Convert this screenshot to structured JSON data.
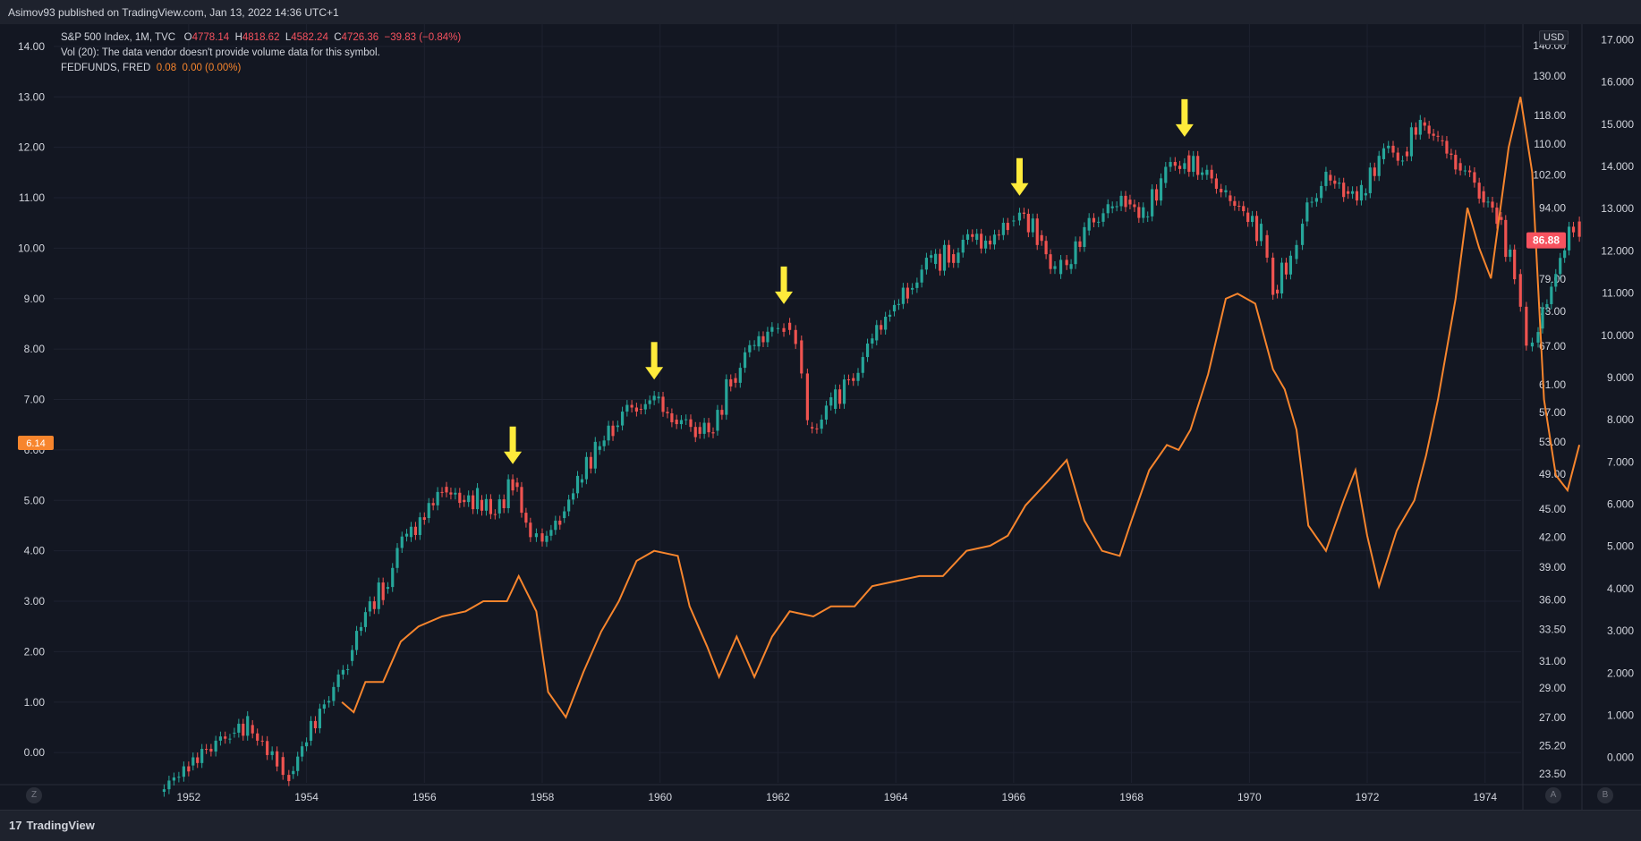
{
  "header": {
    "published": "Asimov93 published on TradingView.com, Jan 13, 2022 14:36 UTC+1"
  },
  "legend": {
    "spx_label": "S&P 500 Index, 1M, TVC",
    "spx_o_key": "O",
    "spx_o": "4778.14",
    "spx_h_key": "H",
    "spx_h": "4818.62",
    "spx_l_key": "L",
    "spx_l": "4582.24",
    "spx_c_key": "C",
    "spx_c": "4726.36",
    "spx_change": "−39.83 (−0.84%)",
    "vol_text": "Vol (20): The data vendor doesn't provide volume data for this symbol.",
    "fed_label": "FEDFUNDS, FRED",
    "fed_value": "0.08",
    "fed_change": "0.00 (0.00%)"
  },
  "footer": {
    "brand": "TradingView",
    "logo": "17",
    "btn_z": "Z",
    "btn_a": "A",
    "btn_b": "B"
  },
  "currency": "USD",
  "chart_data": {
    "type": "candlestick+line",
    "x_ticks": [
      "1952",
      "1954",
      "1956",
      "1958",
      "1960",
      "1962",
      "1964",
      "1966",
      "1968",
      "1970",
      "1972",
      "1974"
    ],
    "left_axis_ticks": [
      "14.00",
      "13.00",
      "12.00",
      "11.00",
      "10.00",
      "9.00",
      "8.00",
      "7.00",
      "6.00",
      "5.00",
      "4.00",
      "3.00",
      "2.00",
      "1.00",
      "0.00"
    ],
    "right_axis_ticks": [
      "140.00",
      "130.00",
      "118.00",
      "110.00",
      "102.00",
      "94.00",
      "86.00",
      "79.00",
      "73.00",
      "67.00",
      "61.00",
      "57.00",
      "53.00",
      "49.00",
      "45.00",
      "42.00",
      "39.00",
      "36.00",
      "33.50",
      "31.00",
      "29.00",
      "27.00",
      "25.20",
      "23.50"
    ],
    "far_right_axis_ticks": [
      "17.000",
      "16.000",
      "15.000",
      "14.000",
      "13.000",
      "12.000",
      "11.000",
      "10.000",
      "9.000",
      "8.000",
      "7.000",
      "6.000",
      "5.000",
      "4.000",
      "3.000",
      "2.000",
      "1.000",
      "0.000"
    ],
    "spx_last_label": "86.88",
    "fed_last_label": "6.14",
    "series": [
      {
        "name": "S&P 500 Index, 1M, TVC",
        "kind": "candles",
        "points": [
          [
            1951.5,
            22.5
          ],
          [
            1952.0,
            24.0
          ],
          [
            1952.3,
            25.0
          ],
          [
            1952.7,
            26.0
          ],
          [
            1953.0,
            26.5
          ],
          [
            1953.5,
            24.5
          ],
          [
            1953.7,
            23.5
          ],
          [
            1954.0,
            25.5
          ],
          [
            1954.3,
            28.0
          ],
          [
            1954.7,
            31.0
          ],
          [
            1955.0,
            35.0
          ],
          [
            1955.3,
            37.0
          ],
          [
            1955.7,
            42.0
          ],
          [
            1956.0,
            44.0
          ],
          [
            1956.3,
            47.5
          ],
          [
            1956.6,
            46.0
          ],
          [
            1956.9,
            46.0
          ],
          [
            1957.2,
            44.5
          ],
          [
            1957.5,
            48.0
          ],
          [
            1957.8,
            42.0
          ],
          [
            1958.0,
            41.5
          ],
          [
            1958.3,
            44.0
          ],
          [
            1958.6,
            48.0
          ],
          [
            1958.9,
            52.0
          ],
          [
            1959.2,
            55.0
          ],
          [
            1959.6,
            57.5
          ],
          [
            1959.9,
            59.0
          ],
          [
            1960.2,
            56.0
          ],
          [
            1960.6,
            55.0
          ],
          [
            1960.9,
            54.5
          ],
          [
            1961.2,
            62.0
          ],
          [
            1961.6,
            67.0
          ],
          [
            1961.9,
            70.0
          ],
          [
            1962.1,
            71.0
          ],
          [
            1962.3,
            68.0
          ],
          [
            1962.5,
            55.0
          ],
          [
            1962.9,
            57.5
          ],
          [
            1963.2,
            62.0
          ],
          [
            1963.6,
            68.0
          ],
          [
            1963.9,
            73.0
          ],
          [
            1964.2,
            77.0
          ],
          [
            1964.6,
            82.0
          ],
          [
            1964.9,
            84.0
          ],
          [
            1965.3,
            87.0
          ],
          [
            1965.6,
            86.0
          ],
          [
            1965.9,
            91.0
          ],
          [
            1966.1,
            93.0
          ],
          [
            1966.4,
            88.0
          ],
          [
            1966.7,
            80.0
          ],
          [
            1966.9,
            81.0
          ],
          [
            1967.2,
            89.0
          ],
          [
            1967.6,
            94.0
          ],
          [
            1967.9,
            96.0
          ],
          [
            1968.2,
            92.0
          ],
          [
            1968.5,
            100.0
          ],
          [
            1968.9,
            107.0
          ],
          [
            1969.2,
            102.0
          ],
          [
            1969.6,
            97.0
          ],
          [
            1969.9,
            93.0
          ],
          [
            1970.2,
            88.0
          ],
          [
            1970.4,
            77.0
          ],
          [
            1970.7,
            83.0
          ],
          [
            1970.9,
            91.0
          ],
          [
            1971.3,
            102.0
          ],
          [
            1971.6,
            98.0
          ],
          [
            1971.9,
            97.0
          ],
          [
            1972.2,
            106.0
          ],
          [
            1972.6,
            108.0
          ],
          [
            1972.9,
            116.0
          ],
          [
            1973.2,
            111.0
          ],
          [
            1973.5,
            105.0
          ],
          [
            1973.9,
            98.0
          ],
          [
            1974.2,
            92.0
          ],
          [
            1974.5,
            80.0
          ],
          [
            1974.7,
            67.0
          ],
          [
            1974.9,
            70.0
          ],
          [
            1975.2,
            80.0
          ],
          [
            1975.5,
            91.0
          ],
          [
            1975.6,
            86.88
          ]
        ]
      },
      {
        "name": "FEDFUNDS, FRED",
        "kind": "line",
        "points": [
          [
            1954.6,
            1.0
          ],
          [
            1954.8,
            0.8
          ],
          [
            1955.0,
            1.4
          ],
          [
            1955.3,
            1.4
          ],
          [
            1955.6,
            2.2
          ],
          [
            1955.9,
            2.5
          ],
          [
            1956.3,
            2.7
          ],
          [
            1956.7,
            2.8
          ],
          [
            1957.0,
            3.0
          ],
          [
            1957.4,
            3.0
          ],
          [
            1957.6,
            3.5
          ],
          [
            1957.9,
            2.8
          ],
          [
            1958.1,
            1.2
          ],
          [
            1958.4,
            0.7
          ],
          [
            1958.7,
            1.6
          ],
          [
            1959.0,
            2.4
          ],
          [
            1959.3,
            3.0
          ],
          [
            1959.6,
            3.8
          ],
          [
            1959.9,
            4.0
          ],
          [
            1960.3,
            3.9
          ],
          [
            1960.5,
            2.9
          ],
          [
            1960.8,
            2.1
          ],
          [
            1961.0,
            1.5
          ],
          [
            1961.3,
            2.3
          ],
          [
            1961.6,
            1.5
          ],
          [
            1961.9,
            2.3
          ],
          [
            1962.2,
            2.8
          ],
          [
            1962.6,
            2.7
          ],
          [
            1962.9,
            2.9
          ],
          [
            1963.3,
            2.9
          ],
          [
            1963.6,
            3.3
          ],
          [
            1964.0,
            3.4
          ],
          [
            1964.4,
            3.5
          ],
          [
            1964.8,
            3.5
          ],
          [
            1965.2,
            4.0
          ],
          [
            1965.6,
            4.1
          ],
          [
            1965.9,
            4.3
          ],
          [
            1966.2,
            4.9
          ],
          [
            1966.6,
            5.4
          ],
          [
            1966.9,
            5.8
          ],
          [
            1967.2,
            4.6
          ],
          [
            1967.5,
            4.0
          ],
          [
            1967.8,
            3.9
          ],
          [
            1968.0,
            4.6
          ],
          [
            1968.3,
            5.6
          ],
          [
            1968.6,
            6.1
          ],
          [
            1968.8,
            6.0
          ],
          [
            1969.0,
            6.4
          ],
          [
            1969.3,
            7.5
          ],
          [
            1969.6,
            9.0
          ],
          [
            1969.8,
            9.1
          ],
          [
            1970.1,
            8.9
          ],
          [
            1970.4,
            7.6
          ],
          [
            1970.6,
            7.2
          ],
          [
            1970.8,
            6.4
          ],
          [
            1971.0,
            4.5
          ],
          [
            1971.3,
            4.0
          ],
          [
            1971.6,
            5.0
          ],
          [
            1971.8,
            5.6
          ],
          [
            1972.0,
            4.3
          ],
          [
            1972.2,
            3.3
          ],
          [
            1972.5,
            4.4
          ],
          [
            1972.8,
            5.0
          ],
          [
            1973.0,
            5.9
          ],
          [
            1973.2,
            7.0
          ],
          [
            1973.5,
            9.0
          ],
          [
            1973.7,
            10.8
          ],
          [
            1973.9,
            10.0
          ],
          [
            1974.1,
            9.4
          ],
          [
            1974.4,
            12.0
          ],
          [
            1974.6,
            13.0
          ],
          [
            1974.8,
            11.5
          ],
          [
            1975.0,
            7.0
          ],
          [
            1975.2,
            5.5
          ],
          [
            1975.4,
            5.2
          ],
          [
            1975.6,
            6.1
          ]
        ]
      }
    ],
    "annotations": [
      {
        "type": "arrow-down",
        "x": 1957.5,
        "y": 50.0
      },
      {
        "type": "arrow-down",
        "x": 1959.9,
        "y": 61.5
      },
      {
        "type": "arrow-down",
        "x": 1962.1,
        "y": 74.0
      },
      {
        "type": "arrow-down",
        "x": 1966.1,
        "y": 96.5
      },
      {
        "type": "arrow-down",
        "x": 1968.9,
        "y": 111.5
      }
    ],
    "colors": {
      "up": "#26a69a",
      "down": "#ef5350",
      "fed": "#f7852d",
      "arrow": "#ffeb3b",
      "background": "#131722",
      "grid": "#1e2230"
    },
    "grid": true
  }
}
